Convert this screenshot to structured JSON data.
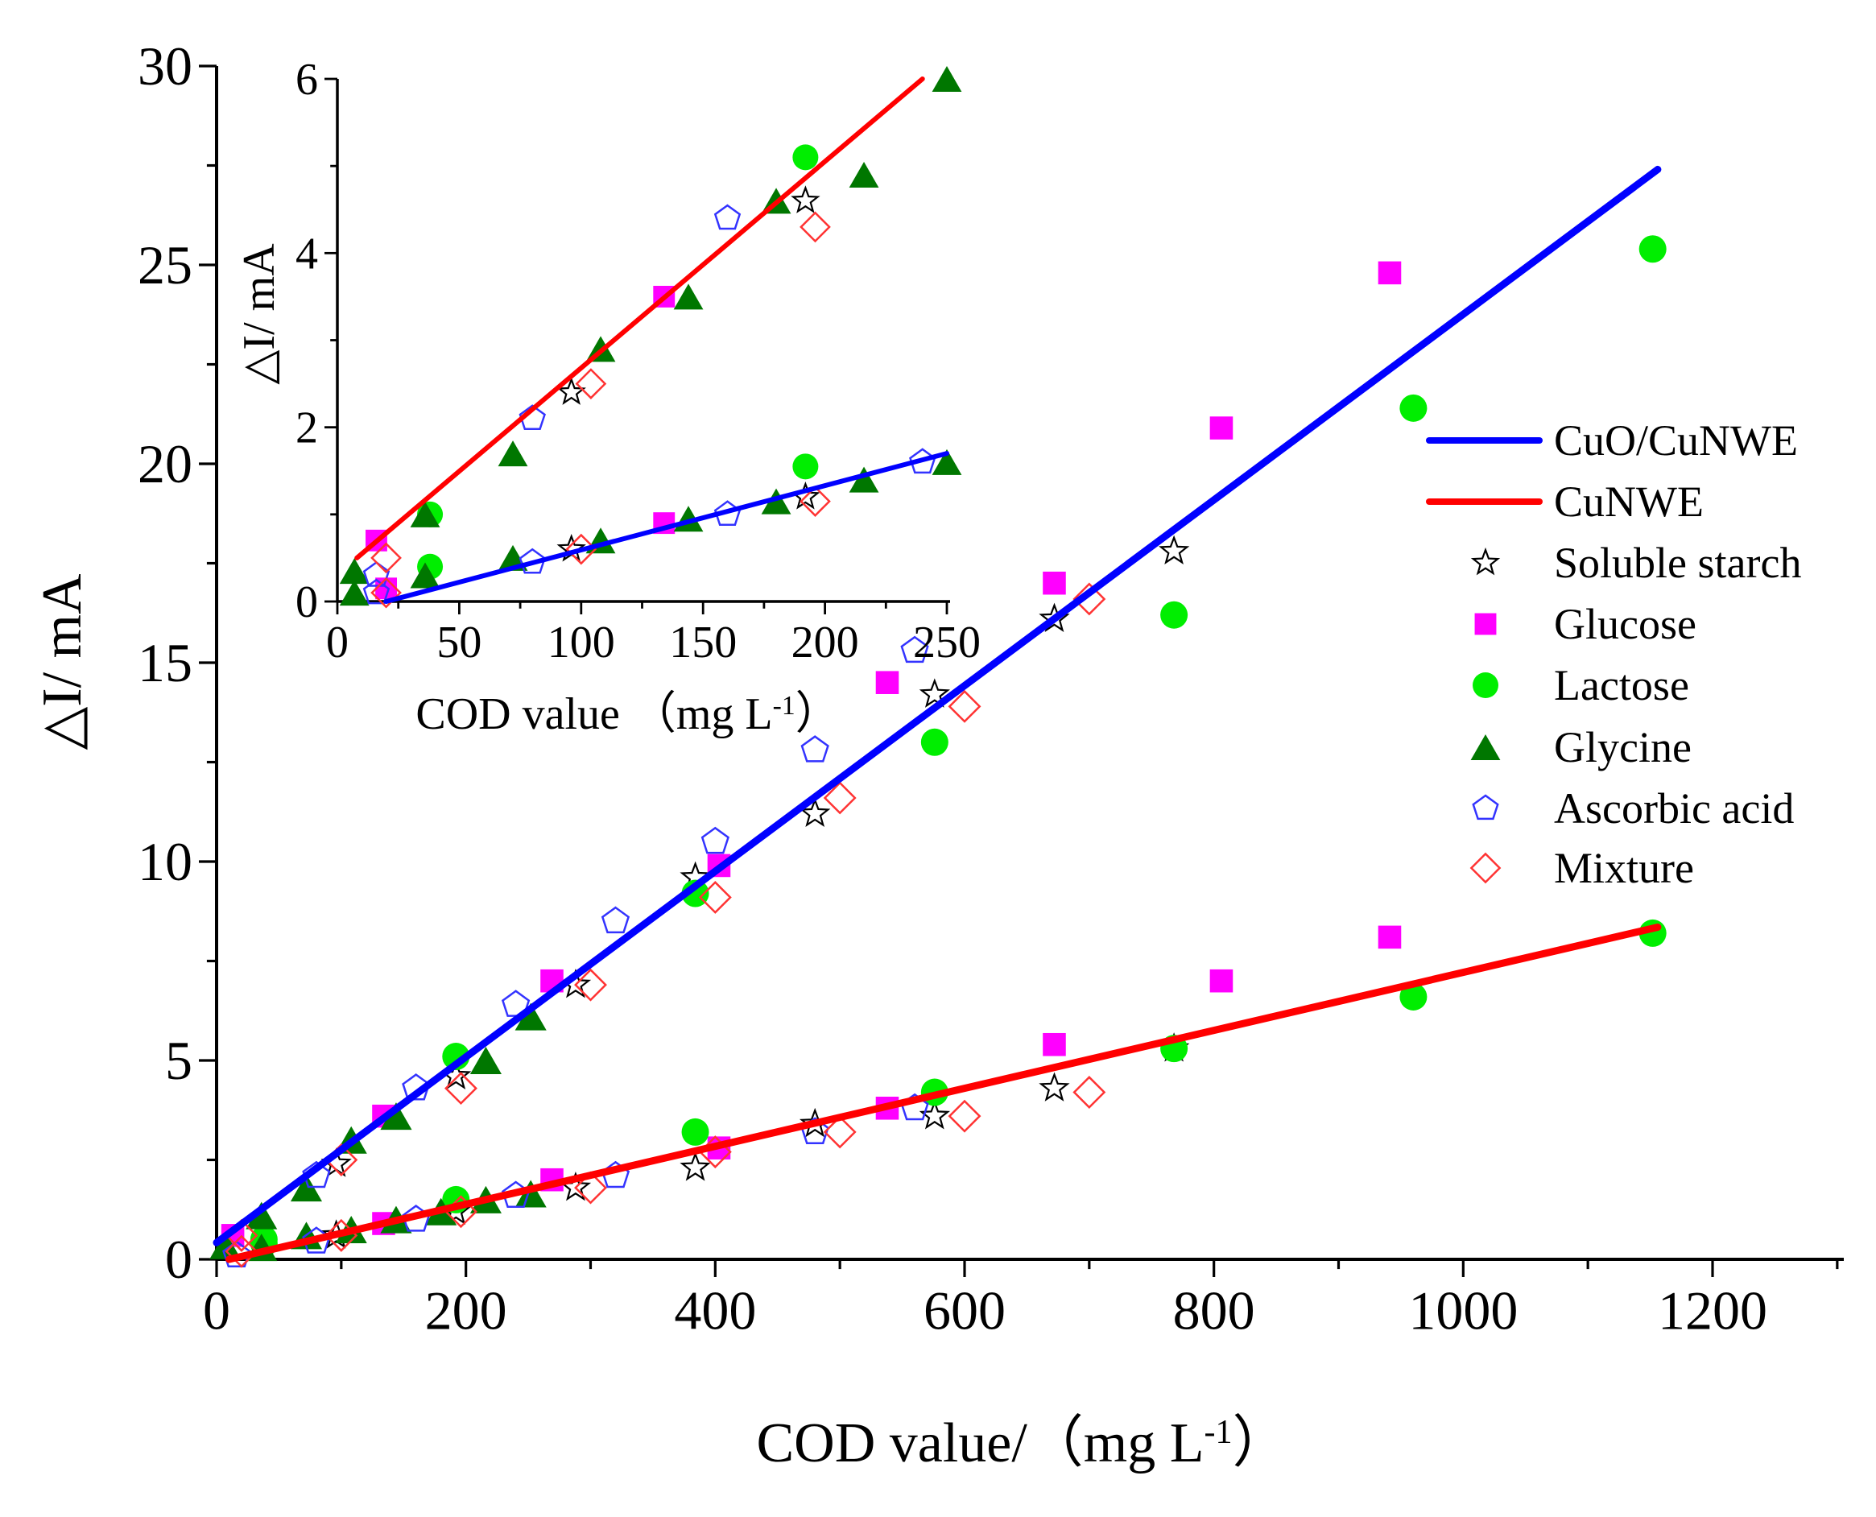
{
  "chart_data": [
    {
      "type": "scatter",
      "name": "main",
      "xlabel": "COD value/（mg L",
      "xlabel_sup": "-1",
      "xlabel_end": "）",
      "ylabel": "△I/ mA",
      "xlim": [
        0,
        1300
      ],
      "ylim": [
        0,
        30
      ],
      "xticks": [
        0,
        200,
        400,
        600,
        800,
        1000,
        1200
      ],
      "yticks": [
        0,
        5,
        10,
        15,
        20,
        25,
        30
      ],
      "grid": false,
      "legend_position": "right",
      "legend": [
        {
          "label": "CuO/CuNWE",
          "kind": "line",
          "color": "#0000ff"
        },
        {
          "label": "CuNWE",
          "kind": "line",
          "color": "#ff0000"
        },
        {
          "label": "Soluble starch",
          "kind": "star",
          "color": "#000000"
        },
        {
          "label": "Glucose",
          "kind": "square",
          "color": "#ff00ff"
        },
        {
          "label": "Lactose",
          "kind": "circle",
          "color": "#00ee00"
        },
        {
          "label": "Glycine",
          "kind": "triangle",
          "color": "#007700"
        },
        {
          "label": "Ascorbic acid",
          "kind": "pentagon",
          "color": "#3333ff"
        },
        {
          "label": "Mixture",
          "kind": "diamond",
          "color": "#ff3333"
        }
      ],
      "fit_lines": [
        {
          "name": "CuO/CuNWE",
          "color": "#0000ff",
          "x": [
            0,
            1156
          ],
          "y": [
            0.42,
            27.4
          ]
        },
        {
          "name": "CuNWE",
          "color": "#ff0000",
          "x": [
            10,
            1156
          ],
          "y": [
            0,
            8.35
          ]
        }
      ],
      "series": [
        {
          "name": "Soluble starch",
          "marker": "star",
          "points": [
            [
              96,
              2.4
            ],
            [
              192,
              4.6
            ],
            [
              288,
              6.9
            ],
            [
              384,
              9.6
            ],
            [
              480,
              11.2
            ],
            [
              576,
              14.2
            ],
            [
              672,
              16.1
            ],
            [
              768,
              17.8
            ],
            [
              96,
              0.6
            ],
            [
              192,
              1.2
            ],
            [
              288,
              1.8
            ],
            [
              384,
              2.3
            ],
            [
              480,
              3.4
            ],
            [
              576,
              3.6
            ],
            [
              672,
              4.3
            ],
            [
              768,
              5.3
            ]
          ]
        },
        {
          "name": "Glucose",
          "marker": "square",
          "points": [
            [
              13,
              0.6
            ],
            [
              134,
              3.6
            ],
            [
              269,
              7.0
            ],
            [
              403,
              9.9
            ],
            [
              538,
              14.5
            ],
            [
              672,
              17.0
            ],
            [
              806,
              20.9
            ],
            [
              941,
              24.8
            ],
            [
              134,
              0.9
            ],
            [
              269,
              2.0
            ],
            [
              403,
              2.8
            ],
            [
              538,
              3.8
            ],
            [
              672,
              5.4
            ],
            [
              806,
              7.0
            ],
            [
              941,
              8.1
            ]
          ]
        },
        {
          "name": "Lactose",
          "marker": "circle",
          "points": [
            [
              38,
              0.5
            ],
            [
              192,
              5.1
            ],
            [
              384,
              9.2
            ],
            [
              576,
              13.0
            ],
            [
              768,
              16.2
            ],
            [
              960,
              21.4
            ],
            [
              1152,
              25.4
            ],
            [
              38,
              0.4
            ],
            [
              192,
              1.5
            ],
            [
              384,
              3.2
            ],
            [
              576,
              4.2
            ],
            [
              768,
              5.3
            ],
            [
              960,
              6.6
            ],
            [
              1152,
              8.2
            ]
          ]
        },
        {
          "name": "Glycine",
          "marker": "triangle",
          "points": [
            [
              7,
              0.35
            ],
            [
              36,
              1.1
            ],
            [
              72,
              1.8
            ],
            [
              108,
              3.0
            ],
            [
              144,
              3.6
            ],
            [
              216,
              5.0
            ],
            [
              252,
              6.1
            ],
            [
              36,
              0.3
            ],
            [
              72,
              0.6
            ],
            [
              108,
              0.75
            ],
            [
              144,
              1.0
            ],
            [
              180,
              1.2
            ],
            [
              216,
              1.5
            ],
            [
              252,
              1.65
            ]
          ]
        },
        {
          "name": "Ascorbic acid",
          "marker": "pentagon",
          "points": [
            [
              16,
              0.1
            ],
            [
              80,
              2.1
            ],
            [
              160,
              4.3
            ],
            [
              240,
              6.4
            ],
            [
              320,
              8.5
            ],
            [
              400,
              10.5
            ],
            [
              480,
              12.8
            ],
            [
              560,
              15.3
            ],
            [
              80,
              0.45
            ],
            [
              160,
              1.0
            ],
            [
              240,
              1.6
            ],
            [
              320,
              2.1
            ],
            [
              480,
              3.2
            ],
            [
              560,
              3.8
            ]
          ]
        },
        {
          "name": "Mixture",
          "marker": "diamond",
          "points": [
            [
              20,
              0.6
            ],
            [
              100,
              2.5
            ],
            [
              196,
              4.3
            ],
            [
              300,
              6.9
            ],
            [
              400,
              9.1
            ],
            [
              500,
              11.6
            ],
            [
              600,
              13.9
            ],
            [
              700,
              16.6
            ],
            [
              20,
              0.2
            ],
            [
              100,
              0.6
            ],
            [
              196,
              1.2
            ],
            [
              300,
              1.8
            ],
            [
              400,
              2.7
            ],
            [
              500,
              3.2
            ],
            [
              600,
              3.6
            ],
            [
              700,
              4.2
            ]
          ]
        }
      ]
    },
    {
      "type": "scatter",
      "name": "inset",
      "xlabel": "COD value （mg L",
      "xlabel_sup": "-1",
      "xlabel_end": "）",
      "ylabel": "△I/ mA",
      "xlim": [
        0,
        250
      ],
      "ylim": [
        0,
        6
      ],
      "xticks": [
        0,
        50,
        100,
        150,
        200,
        250
      ],
      "yticks": [
        0,
        2,
        4,
        6
      ],
      "grid": false,
      "fit_lines": [
        {
          "name": "CuNWE",
          "color": "#ff0000",
          "x": [
            8,
            240
          ],
          "y": [
            0.5,
            6.0
          ]
        },
        {
          "name": "CuO/CuNWE",
          "color": "#0000ff",
          "x": [
            20,
            250
          ],
          "y": [
            0,
            1.7
          ]
        }
      ],
      "series": [
        {
          "name": "Soluble starch",
          "marker": "star",
          "points": [
            [
              96,
              2.4
            ],
            [
              192,
              4.6
            ],
            [
              96,
              0.6
            ],
            [
              192,
              1.2
            ]
          ]
        },
        {
          "name": "Glucose",
          "marker": "square",
          "points": [
            [
              16,
              0.7
            ],
            [
              134,
              3.5
            ],
            [
              20,
              0.15
            ],
            [
              134,
              0.9
            ]
          ]
        },
        {
          "name": "Lactose",
          "marker": "circle",
          "points": [
            [
              38,
              1.0
            ],
            [
              192,
              5.1
            ],
            [
              38,
              0.4
            ],
            [
              192,
              1.55
            ]
          ]
        },
        {
          "name": "Glycine",
          "marker": "triangle",
          "points": [
            [
              7,
              0.35
            ],
            [
              36,
              1.0
            ],
            [
              72,
              1.7
            ],
            [
              108,
              2.9
            ],
            [
              144,
              3.5
            ],
            [
              180,
              4.6
            ],
            [
              216,
              4.9
            ],
            [
              250,
              6.0
            ],
            [
              7,
              0.1
            ],
            [
              36,
              0.3
            ],
            [
              72,
              0.5
            ],
            [
              108,
              0.7
            ],
            [
              144,
              0.95
            ],
            [
              180,
              1.15
            ],
            [
              216,
              1.4
            ],
            [
              250,
              1.6
            ]
          ]
        },
        {
          "name": "Ascorbic acid",
          "marker": "pentagon",
          "points": [
            [
              16,
              0.3
            ],
            [
              80,
              2.1
            ],
            [
              160,
              4.4
            ],
            [
              16,
              0.1
            ],
            [
              80,
              0.45
            ],
            [
              160,
              1.0
            ],
            [
              240,
              1.6
            ]
          ]
        },
        {
          "name": "Mixture",
          "marker": "diamond",
          "points": [
            [
              20,
              0.5
            ],
            [
              104,
              2.5
            ],
            [
              196,
              4.3
            ],
            [
              20,
              0.1
            ],
            [
              100,
              0.6
            ],
            [
              196,
              1.15
            ]
          ]
        }
      ]
    }
  ],
  "colors": {
    "star": "#000000",
    "square": "#ff00ff",
    "circle": "#00ee00",
    "triangle": "#007700",
    "pentagon": "#3333ff",
    "diamond": "#ff3333"
  }
}
